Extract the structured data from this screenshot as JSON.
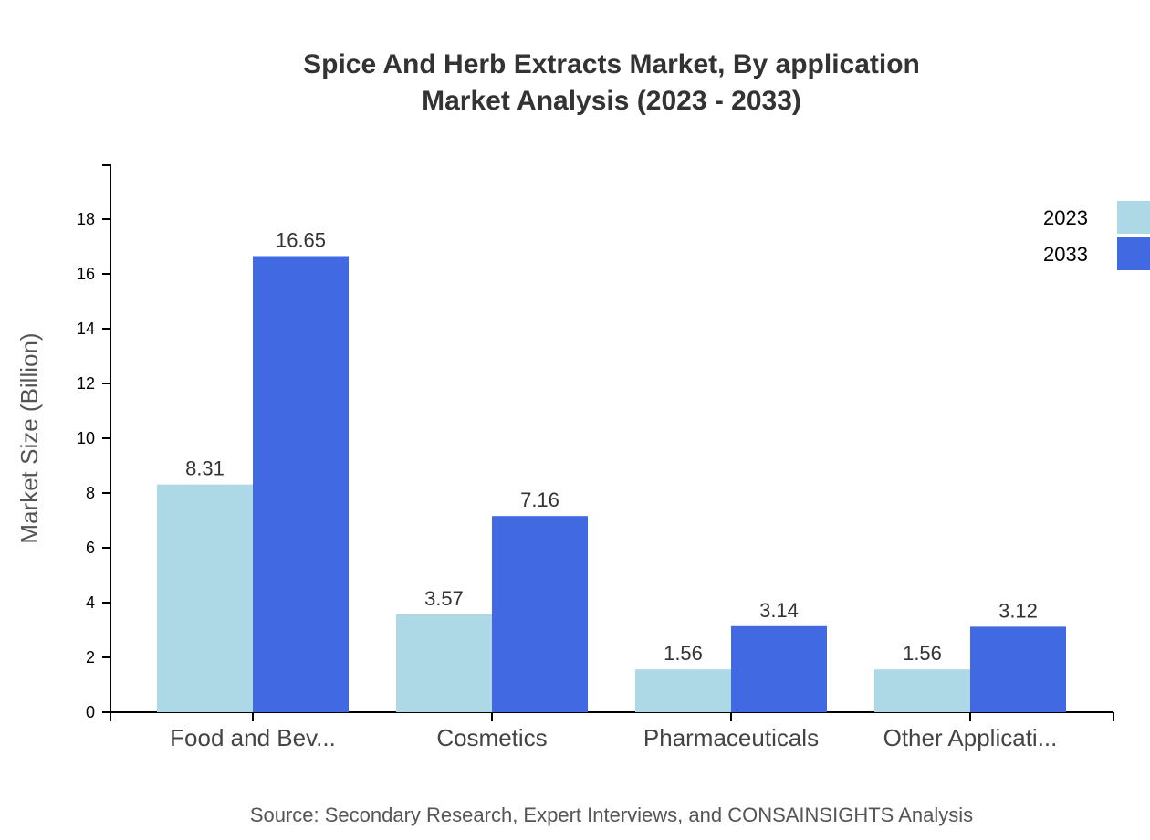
{
  "chart_data": {
    "type": "bar",
    "title": "Spice And Herb Extracts Market, By application",
    "subtitle": "Market Analysis (2023 - 2033)",
    "xlabel": "",
    "ylabel": "Market Size (Billion)",
    "ylim": [
      0,
      20
    ],
    "yticks": [
      0,
      2,
      4,
      6,
      8,
      10,
      12,
      14,
      16,
      18
    ],
    "categories": [
      "Food and Bev...",
      "Cosmetics",
      "Pharmaceuticals",
      "Other Applicati..."
    ],
    "series": [
      {
        "name": "2023",
        "color": "#add8e6",
        "values": [
          8.31,
          3.57,
          1.56,
          1.56
        ]
      },
      {
        "name": "2033",
        "color": "#4169e1",
        "values": [
          16.65,
          7.16,
          3.14,
          3.12
        ]
      }
    ],
    "legend_position": "top-right",
    "grid": false,
    "source": "Source: Secondary Research, Expert Interviews, and CONSAINSIGHTS Analysis"
  }
}
